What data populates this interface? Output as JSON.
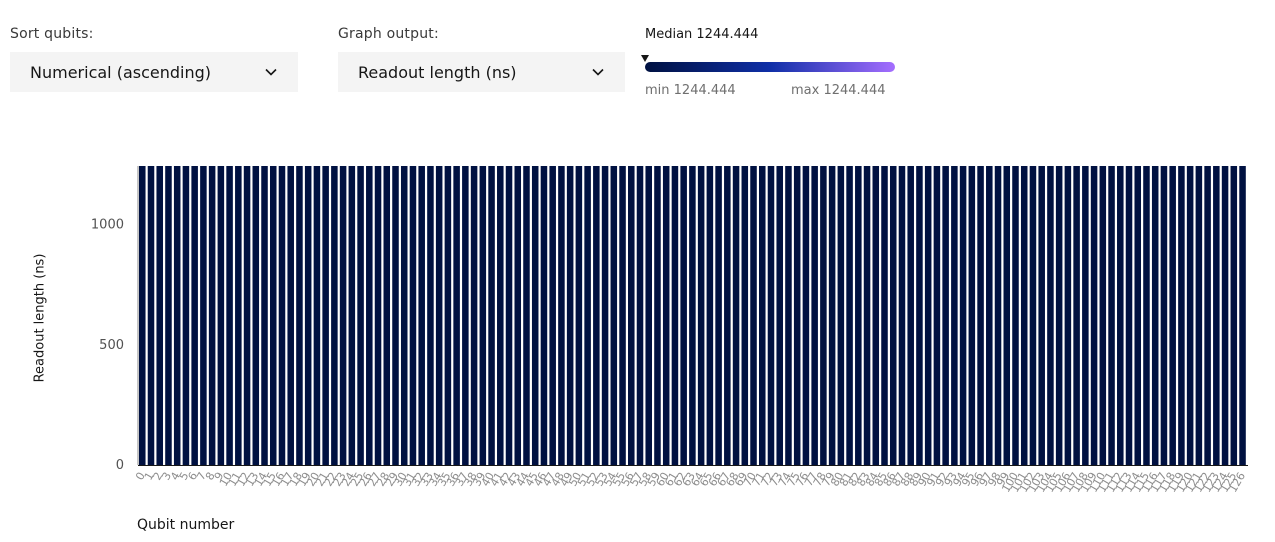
{
  "controls": {
    "sort": {
      "label": "Sort qubits:",
      "value": "Numerical (ascending)"
    },
    "graph": {
      "label": "Graph output:",
      "value": "Readout length (ns)"
    }
  },
  "scale": {
    "median_text": "Median 1244.444",
    "min_text": "min 1244.444",
    "max_text": "max 1244.444",
    "gradient_start": "#001141",
    "gradient_mid": "#0f2fa7",
    "gradient_end": "#a56eff"
  },
  "chart_data": {
    "type": "bar",
    "xlabel": "Qubit number",
    "ylabel": "Readout length (ns)",
    "ylim": [
      0,
      1244.444
    ],
    "yticks": [
      0,
      500,
      1000
    ],
    "bar_color": "#001141",
    "n_bars": 127,
    "value": 1244.444
  }
}
